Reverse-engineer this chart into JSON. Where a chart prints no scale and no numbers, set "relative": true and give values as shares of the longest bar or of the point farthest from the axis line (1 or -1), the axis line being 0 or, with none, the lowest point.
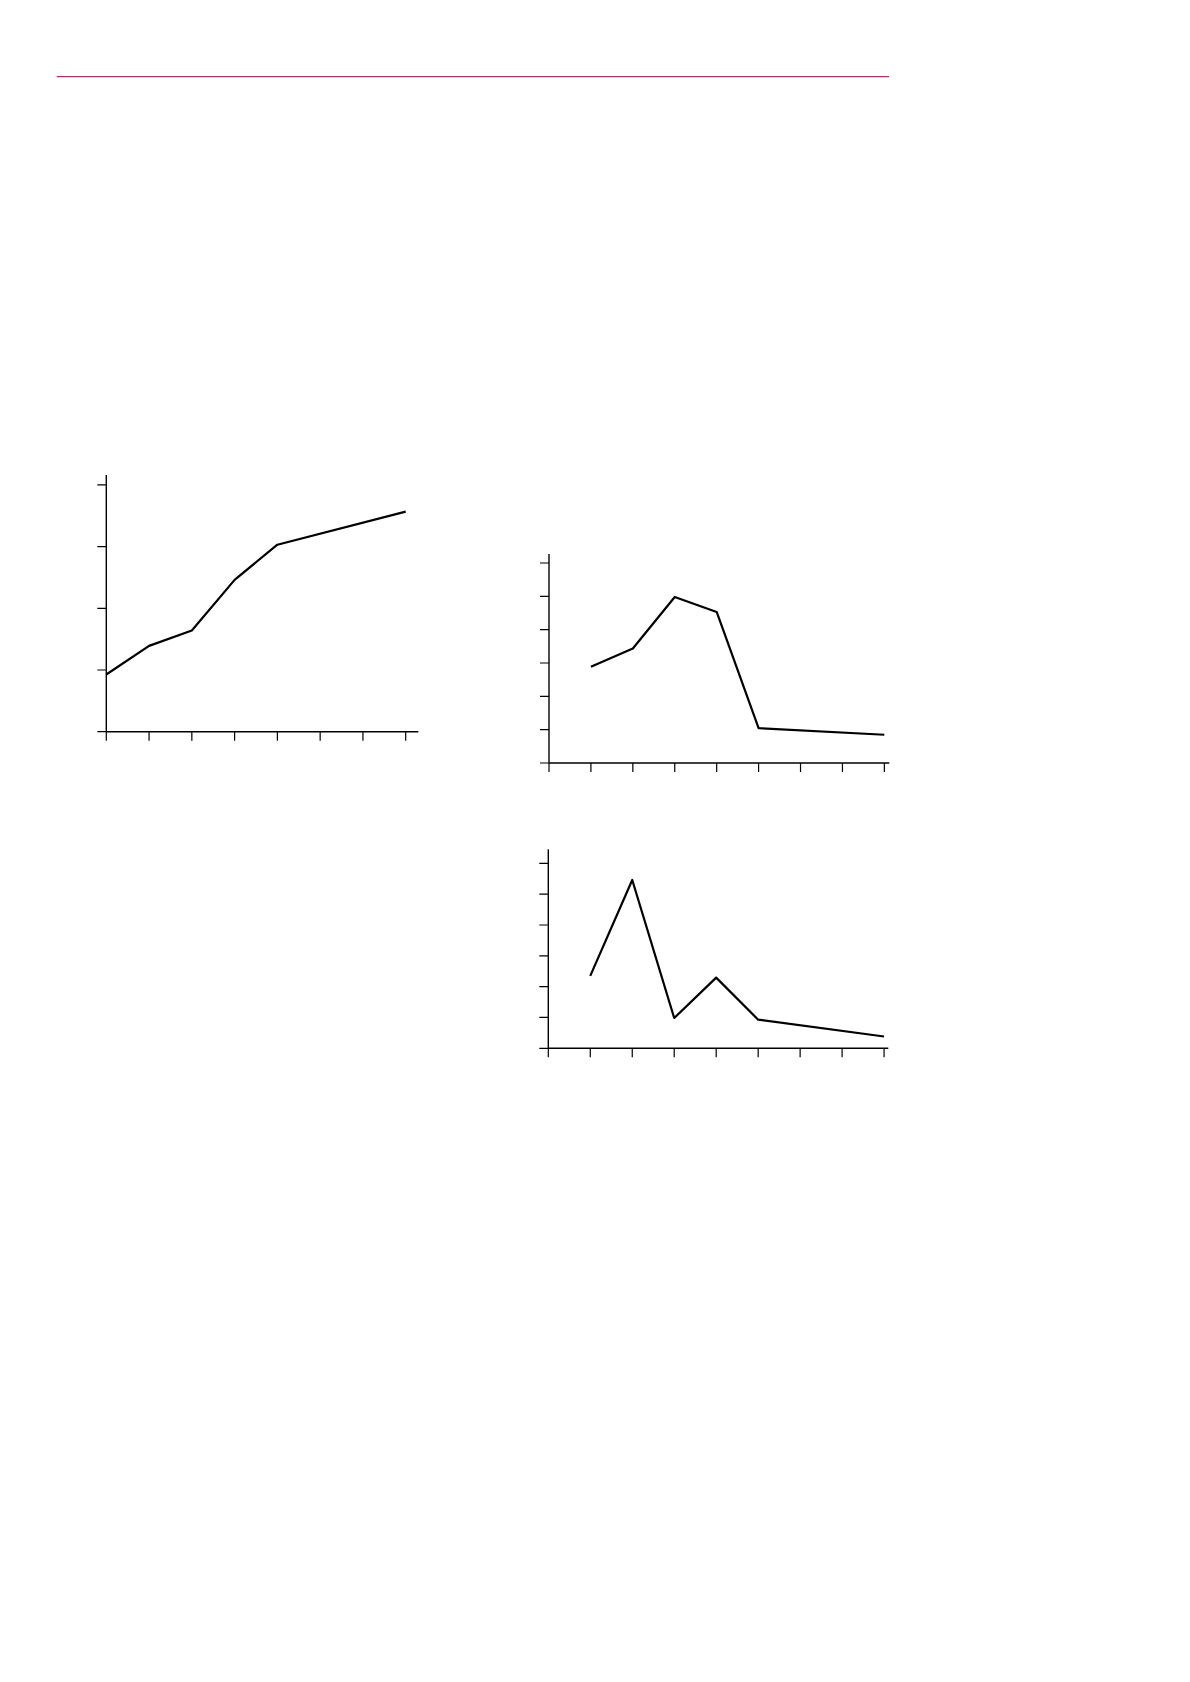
{
  "chart_data": [
    {
      "type": "line",
      "relative": true,
      "color": "#000000",
      "categories": [
        null,
        null,
        null,
        null,
        null,
        null,
        null,
        null
      ],
      "values": [
        0.26,
        0.39,
        0.46,
        0.69,
        0.85,
        null,
        null,
        1
      ]
    },
    {
      "type": "line",
      "relative": true,
      "color": "#000000",
      "categories": [
        null,
        null,
        null,
        null,
        null,
        null,
        null,
        null,
        null
      ],
      "values": [
        null,
        0.58,
        0.69,
        1,
        0.91,
        0.21,
        null,
        null,
        0.17
      ]
    },
    {
      "type": "line",
      "relative": true,
      "color": "#000000",
      "categories": [
        null,
        null,
        null,
        null,
        null,
        null,
        null,
        null,
        null
      ],
      "values": [
        null,
        0.43,
        1,
        0.18,
        0.42,
        0.17,
        null,
        null,
        0.07
      ]
    }
  ]
}
